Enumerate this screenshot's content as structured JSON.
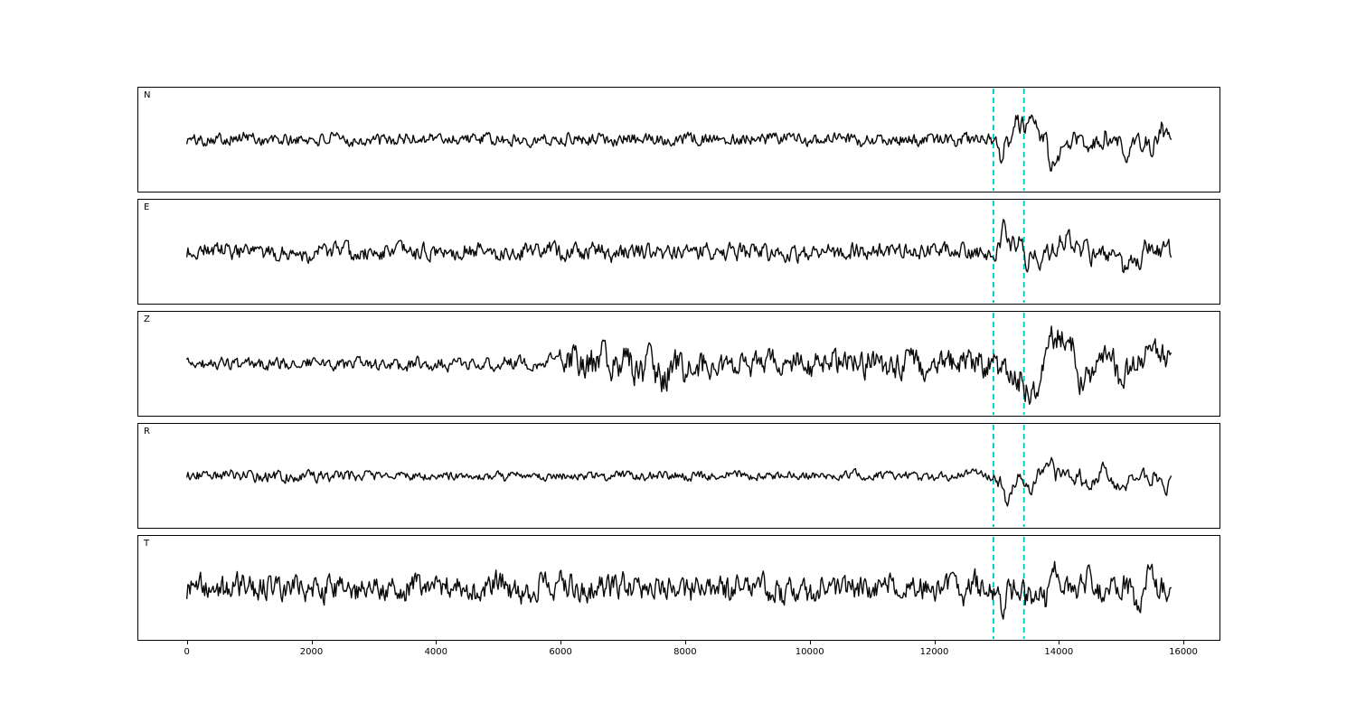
{
  "chart_data": {
    "type": "line",
    "title": "",
    "description": "Five-component seismic waveform record section (N, E, Z, R, T traces) with a cyan dashed pick window",
    "panels": [
      {
        "label": "N",
        "seed": 101,
        "fast_envelope": [
          [
            0,
            0.22
          ],
          [
            12800,
            0.22
          ],
          [
            13300,
            0.26
          ],
          [
            15800,
            0.26
          ]
        ],
        "slow_envelope": [
          [
            0,
            0.05
          ],
          [
            12900,
            0.05
          ],
          [
            13120,
            1.05
          ],
          [
            13420,
            1.0
          ],
          [
            14200,
            0.62
          ],
          [
            15800,
            0.55
          ]
        ]
      },
      {
        "label": "E",
        "seed": 202,
        "fast_envelope": [
          [
            0,
            0.3
          ],
          [
            15800,
            0.3
          ]
        ],
        "slow_envelope": [
          [
            0,
            0.08
          ],
          [
            12900,
            0.08
          ],
          [
            13150,
            1.0
          ],
          [
            13400,
            0.95
          ],
          [
            14300,
            0.6
          ],
          [
            15800,
            0.55
          ]
        ]
      },
      {
        "label": "Z",
        "seed": 303,
        "fast_envelope": [
          [
            0,
            0.22
          ],
          [
            5900,
            0.22
          ],
          [
            6100,
            0.62
          ],
          [
            7600,
            0.62
          ],
          [
            8600,
            0.45
          ],
          [
            12900,
            0.45
          ],
          [
            15800,
            0.5
          ]
        ],
        "slow_envelope": [
          [
            0,
            0.06
          ],
          [
            5900,
            0.08
          ],
          [
            6100,
            0.35
          ],
          [
            7600,
            0.35
          ],
          [
            8600,
            0.25
          ],
          [
            12950,
            0.3
          ],
          [
            13250,
            0.85
          ],
          [
            13700,
            0.75
          ],
          [
            15800,
            0.65
          ]
        ]
      },
      {
        "label": "R",
        "seed": 404,
        "fast_envelope": [
          [
            0,
            0.22
          ],
          [
            2600,
            0.22
          ],
          [
            3000,
            0.16
          ],
          [
            12800,
            0.16
          ],
          [
            13050,
            0.2
          ],
          [
            15800,
            0.22
          ]
        ],
        "slow_envelope": [
          [
            0,
            0.05
          ],
          [
            12900,
            0.05
          ],
          [
            13100,
            1.05
          ],
          [
            13430,
            1.0
          ],
          [
            14200,
            0.55
          ],
          [
            15800,
            0.5
          ]
        ]
      },
      {
        "label": "T",
        "seed": 505,
        "fast_envelope": [
          [
            0,
            0.45
          ],
          [
            15800,
            0.45
          ]
        ],
        "slow_envelope": [
          [
            0,
            0.18
          ],
          [
            12900,
            0.2
          ],
          [
            13150,
            0.7
          ],
          [
            13600,
            0.65
          ],
          [
            15800,
            0.6
          ]
        ]
      }
    ],
    "x_axis": {
      "ticks": [
        0,
        2000,
        4000,
        6000,
        8000,
        10000,
        12000,
        14000,
        16000
      ],
      "domain": [
        -780,
        16580
      ],
      "trace_start": 0,
      "trace_end": 15800
    },
    "event_window": {
      "start": 12950,
      "end": 13440,
      "line_color": "#00c5cd",
      "line_style": "dashed"
    },
    "trace_color": "#0a0a0a",
    "frame_color": "#000000",
    "background": "#ffffff",
    "legend": "none",
    "grid": false
  }
}
